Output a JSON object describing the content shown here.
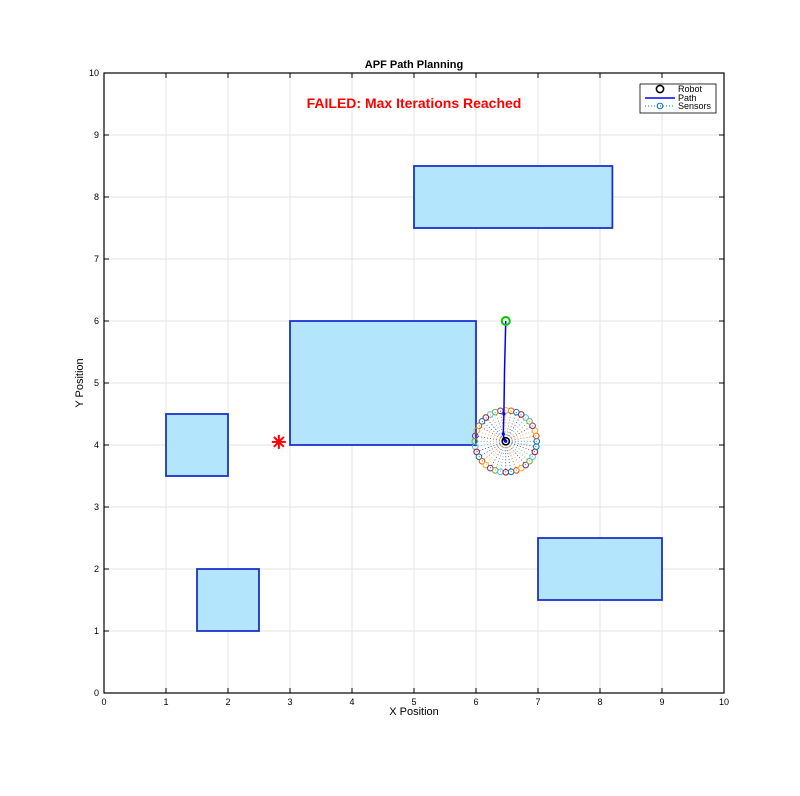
{
  "chart_data": {
    "type": "scatter",
    "title": "APF Path Planning",
    "xlabel": "X Position",
    "ylabel": "Y Position",
    "xlim": [
      0,
      10
    ],
    "ylim": [
      0,
      10
    ],
    "xticks": [
      "0",
      "1",
      "2",
      "3",
      "4",
      "5",
      "6",
      "7",
      "8",
      "9",
      "10"
    ],
    "yticks": [
      "0",
      "1",
      "2",
      "3",
      "4",
      "5",
      "6",
      "7",
      "8",
      "9",
      "10"
    ],
    "grid": true,
    "legend_position": "top-right",
    "legend": [
      {
        "label": "Robot",
        "marker": "circle",
        "color": "#000000"
      },
      {
        "label": "Path",
        "marker": "line",
        "color": "#0000ff"
      },
      {
        "label": "Sensors",
        "marker": "dotted-circle",
        "color": "#0072bd"
      }
    ],
    "status_text": "FAILED: Max Iterations Reached",
    "status_color": "#ff0000",
    "obstacle_fill": "#b3e5fc",
    "obstacle_edge": "#1a33cc",
    "obstacles": [
      {
        "x0": 5,
        "y0": 7.5,
        "x1": 8.2,
        "y1": 8.5
      },
      {
        "x0": 3,
        "y0": 4,
        "x1": 6,
        "y1": 6
      },
      {
        "x0": 1,
        "y0": 3.5,
        "x1": 2,
        "y1": 4.5
      },
      {
        "x0": 1.5,
        "y0": 1,
        "x1": 2.5,
        "y1": 2
      },
      {
        "x0": 7,
        "y0": 1.5,
        "x1": 9,
        "y1": 2.5
      }
    ],
    "start": {
      "x": 6.48,
      "y": 6.0,
      "color": "#00cc00"
    },
    "goal": {
      "x": 2.82,
      "y": 4.05,
      "color": "#ff0000"
    },
    "robot": {
      "x": 6.48,
      "y": 4.06
    },
    "path": {
      "x": [
        6.48,
        6.46,
        6.45,
        6.44,
        6.45,
        6.47,
        6.48
      ],
      "y": [
        6.0,
        5.2,
        4.5,
        4.18,
        4.1,
        4.07,
        4.06
      ],
      "color": "#0000ff"
    },
    "sensors": {
      "count": 36,
      "radius": 0.5,
      "colors": [
        "#0072bd",
        "#d95319",
        "#edb120",
        "#7e2f8e",
        "#77ac30",
        "#4dbeee",
        "#a2142f"
      ]
    }
  }
}
